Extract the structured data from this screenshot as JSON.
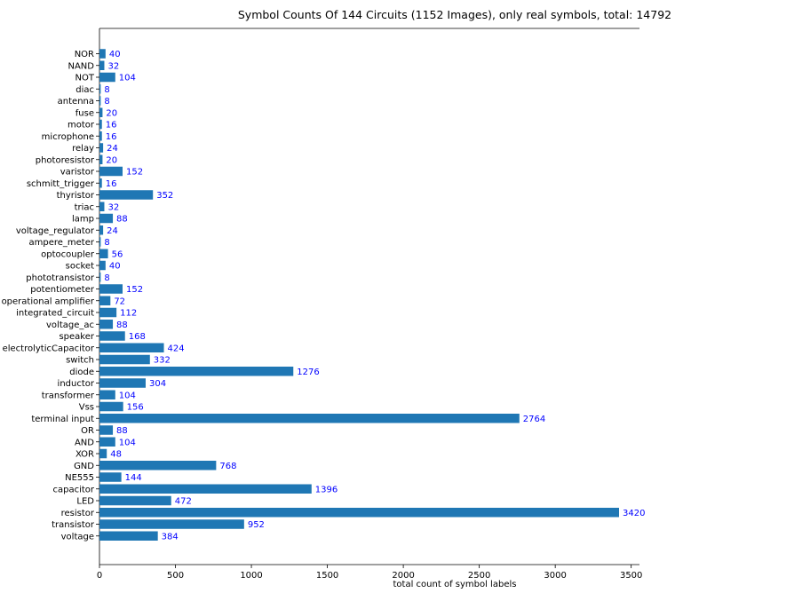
{
  "chart_data": {
    "type": "bar",
    "orientation": "horizontal",
    "title": "Symbol Counts Of 144 Circuits (1152 Images), only real symbols, total: 14792",
    "xlabel": "total count of symbol labels",
    "ylabel": "",
    "xlim": [
      0,
      3600
    ],
    "xticks": [
      0,
      500,
      1000,
      1500,
      2000,
      2500,
      3000,
      3500
    ],
    "grid": false,
    "bar_color": "#1f77b4",
    "label_color": "#0000ff",
    "categories": [
      "NOR",
      "NAND",
      "NOT",
      "diac",
      "antenna",
      "fuse",
      "motor",
      "microphone",
      "relay",
      "photoresistor",
      "varistor",
      "schmitt_trigger",
      "thyristor",
      "triac",
      "lamp",
      "voltage_regulator",
      "ampere_meter",
      "optocoupler",
      "socket",
      "phototransistor",
      "potentiometer",
      "operational amplifier",
      "integrated_circuit",
      "voltage_ac",
      "speaker",
      "electrolyticCapacitor",
      "switch",
      "diode",
      "inductor",
      "transformer",
      "Vss",
      "terminal input",
      "OR",
      "AND",
      "XOR",
      "GND",
      "NE555",
      "capacitor",
      "LED",
      "resistor",
      "transistor",
      "voltage"
    ],
    "values": [
      40,
      32,
      104,
      8,
      8,
      20,
      16,
      16,
      24,
      20,
      152,
      16,
      352,
      32,
      88,
      24,
      8,
      56,
      40,
      8,
      152,
      72,
      112,
      88,
      168,
      424,
      332,
      1276,
      304,
      104,
      156,
      2764,
      88,
      104,
      48,
      768,
      144,
      1396,
      472,
      3420,
      952,
      384
    ]
  }
}
